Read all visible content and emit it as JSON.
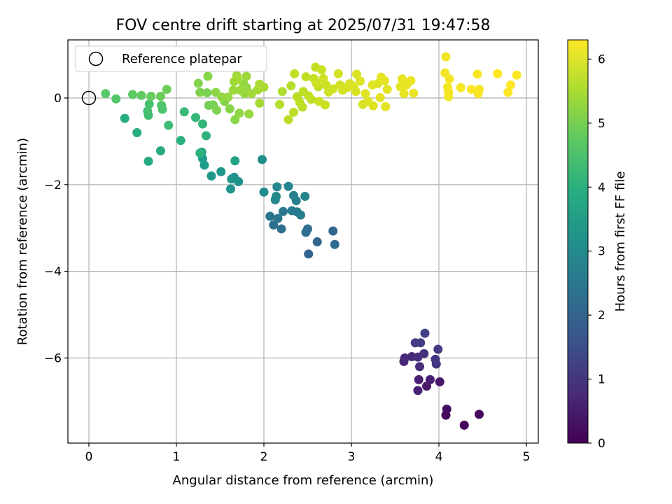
{
  "chart_data": {
    "type": "scatter",
    "title": "FOV centre drift starting at 2025/07/31 19:47:58",
    "xlabel": "Angular distance from reference (arcmin)",
    "ylabel": "Rotation from reference (arcmin)",
    "xlim": [
      -0.25,
      5.15
    ],
    "ylim": [
      -7.9,
      1.35
    ],
    "xticks": [
      0,
      1,
      2,
      3,
      4,
      5
    ],
    "xtick_labels": [
      "0",
      "1",
      "2",
      "3",
      "4",
      "5"
    ],
    "yticks": [
      0,
      -2,
      -4,
      -6
    ],
    "ytick_labels": [
      "0",
      "−2",
      "−4",
      "−6"
    ],
    "grid": true,
    "legend": {
      "placement": "top-left",
      "label": "Reference platepar"
    },
    "reference_point": {
      "x": 0,
      "y": 0
    },
    "colorbar": {
      "label": "Hours from first FF file",
      "range": [
        0,
        6.3
      ],
      "ticks": [
        0,
        1,
        2,
        3,
        4,
        5,
        6
      ],
      "tick_labels": [
        "0",
        "1",
        "2",
        "3",
        "4",
        "5",
        "6"
      ],
      "colormap": "viridis"
    },
    "points": [
      [
        4.29,
        -7.55,
        0.05
      ],
      [
        4.46,
        -7.3,
        0.1
      ],
      [
        4.08,
        -7.32,
        0.15
      ],
      [
        4.09,
        -7.18,
        0.2
      ],
      [
        4.01,
        -6.55,
        0.4
      ],
      [
        3.86,
        -6.65,
        0.45
      ],
      [
        3.9,
        -6.5,
        0.5
      ],
      [
        3.77,
        -6.5,
        0.55
      ],
      [
        3.76,
        -6.75,
        0.6
      ],
      [
        3.6,
        -6.08,
        0.65
      ],
      [
        3.61,
        -6.0,
        0.7
      ],
      [
        3.69,
        -5.97,
        0.75
      ],
      [
        3.78,
        -6.2,
        0.8
      ],
      [
        3.76,
        -5.98,
        0.85
      ],
      [
        3.83,
        -5.9,
        0.9
      ],
      [
        3.96,
        -6.03,
        0.95
      ],
      [
        3.97,
        -6.14,
        1.0
      ],
      [
        3.99,
        -5.8,
        1.05
      ],
      [
        3.73,
        -5.65,
        1.1
      ],
      [
        3.79,
        -5.65,
        1.15
      ],
      [
        3.84,
        -5.43,
        1.2
      ],
      [
        2.51,
        -3.6,
        2.0
      ],
      [
        2.61,
        -3.32,
        2.05
      ],
      [
        2.79,
        -3.07,
        2.1
      ],
      [
        2.81,
        -3.38,
        2.15
      ],
      [
        2.5,
        -3.02,
        2.2
      ],
      [
        2.48,
        -3.1,
        2.25
      ],
      [
        2.2,
        -3.02,
        2.3
      ],
      [
        2.11,
        -2.93,
        2.35
      ],
      [
        2.07,
        -2.73,
        2.4
      ],
      [
        2.16,
        -2.78,
        2.45
      ],
      [
        2.22,
        -2.62,
        2.5
      ],
      [
        2.32,
        -2.6,
        2.55
      ],
      [
        2.38,
        -2.63,
        2.6
      ],
      [
        2.42,
        -2.7,
        2.65
      ],
      [
        2.37,
        -2.37,
        2.7
      ],
      [
        2.34,
        -2.25,
        2.75
      ],
      [
        2.47,
        -2.27,
        2.8
      ],
      [
        2.28,
        -2.04,
        2.85
      ],
      [
        2.15,
        -2.05,
        2.9
      ],
      [
        2.13,
        -2.35,
        2.95
      ],
      [
        2.14,
        -2.27,
        3.0
      ],
      [
        2.0,
        -2.17,
        3.05
      ],
      [
        1.98,
        -1.42,
        3.1
      ],
      [
        1.71,
        -1.93,
        3.15
      ],
      [
        1.66,
        -1.83,
        3.2
      ],
      [
        1.62,
        -2.1,
        3.25
      ],
      [
        1.63,
        -1.87,
        3.3
      ],
      [
        1.51,
        -1.7,
        3.35
      ],
      [
        1.4,
        -1.8,
        3.4
      ],
      [
        1.32,
        -1.55,
        3.45
      ],
      [
        1.3,
        -1.4,
        3.5
      ],
      [
        1.29,
        -1.25,
        3.55
      ],
      [
        1.67,
        -1.45,
        3.6
      ],
      [
        0.68,
        -1.46,
        3.8
      ],
      [
        0.82,
        -1.22,
        3.85
      ],
      [
        0.55,
        -0.8,
        3.9
      ],
      [
        0.41,
        -0.47,
        3.95
      ],
      [
        1.05,
        -0.98,
        4.0
      ],
      [
        1.27,
        -1.27,
        4.05
      ],
      [
        1.34,
        -0.87,
        4.1
      ],
      [
        1.3,
        -0.6,
        4.15
      ],
      [
        1.22,
        -0.45,
        4.2
      ],
      [
        1.09,
        -0.32,
        4.25
      ],
      [
        0.91,
        -0.63,
        4.3
      ],
      [
        0.68,
        -0.4,
        4.35
      ],
      [
        0.67,
        -0.3,
        4.4
      ],
      [
        0.69,
        -0.14,
        4.45
      ],
      [
        0.84,
        -0.26,
        4.5
      ],
      [
        0.83,
        -0.17,
        4.55
      ],
      [
        0.31,
        -0.02,
        4.6
      ],
      [
        0.19,
        0.1,
        4.65
      ],
      [
        0.5,
        0.08,
        4.7
      ],
      [
        0.6,
        0.06,
        4.75
      ],
      [
        0.71,
        0.04,
        4.8
      ],
      [
        0.82,
        0.04,
        4.85
      ],
      [
        0.89,
        0.2,
        4.9
      ],
      [
        1.37,
        -0.17,
        4.95
      ],
      [
        1.42,
        -0.16,
        5.0
      ],
      [
        1.46,
        -0.28,
        5.05
      ],
      [
        1.55,
        -0.08,
        5.1
      ],
      [
        1.61,
        -0.25,
        5.15
      ],
      [
        1.67,
        -0.5,
        5.2
      ],
      [
        1.72,
        -0.35,
        5.25
      ],
      [
        1.83,
        -0.37,
        5.3
      ],
      [
        1.35,
        0.12,
        5.0
      ],
      [
        1.27,
        0.13,
        5.05
      ],
      [
        1.25,
        0.34,
        5.1
      ],
      [
        1.36,
        0.5,
        5.15
      ],
      [
        1.45,
        0.13,
        5.2
      ],
      [
        1.52,
        0.02,
        5.25
      ],
      [
        1.59,
        0.02,
        5.3
      ],
      [
        1.65,
        0.18,
        5.35
      ],
      [
        1.66,
        0.38,
        5.4
      ],
      [
        1.7,
        0.43,
        5.45
      ],
      [
        1.69,
        0.52,
        5.4
      ],
      [
        1.73,
        0.18,
        5.35
      ],
      [
        1.78,
        0.1,
        5.3
      ],
      [
        1.8,
        0.5,
        5.35
      ],
      [
        1.86,
        0.1,
        5.4
      ],
      [
        1.93,
        0.19,
        5.45
      ],
      [
        1.95,
        0.32,
        5.5
      ],
      [
        1.95,
        -0.12,
        5.45
      ],
      [
        2.0,
        0.25,
        5.5
      ],
      [
        1.77,
        0.33,
        5.25
      ],
      [
        1.8,
        0.24,
        5.3
      ],
      [
        2.18,
        -0.15,
        5.6
      ],
      [
        2.21,
        0.15,
        5.55
      ],
      [
        2.28,
        -0.5,
        5.65
      ],
      [
        2.31,
        0.28,
        5.6
      ],
      [
        2.34,
        -0.33,
        5.65
      ],
      [
        2.35,
        0.56,
        5.7
      ],
      [
        2.38,
        0.03,
        5.65
      ],
      [
        2.41,
        -0.1,
        5.7
      ],
      [
        2.44,
        -0.21,
        5.65
      ],
      [
        2.45,
        0.15,
        5.7
      ],
      [
        2.48,
        0.49,
        5.7
      ],
      [
        2.51,
        0.05,
        5.75
      ],
      [
        2.54,
        -0.03,
        5.7
      ],
      [
        2.57,
        0.45,
        5.75
      ],
      [
        2.59,
        0.71,
        5.75
      ],
      [
        2.6,
        0.34,
        5.8
      ],
      [
        2.62,
        0.26,
        5.75
      ],
      [
        2.63,
        -0.08,
        5.8
      ],
      [
        2.66,
        0.65,
        5.8
      ],
      [
        2.68,
        0.45,
        5.85
      ],
      [
        2.7,
        -0.16,
        5.8
      ],
      [
        2.71,
        0.3,
        5.85
      ],
      [
        2.74,
        0.14,
        5.85
      ],
      [
        2.79,
        0.21,
        5.85
      ],
      [
        2.85,
        0.56,
        5.9
      ],
      [
        2.87,
        0.3,
        5.9
      ],
      [
        2.9,
        0.18,
        5.9
      ],
      [
        2.95,
        0.24,
        5.9
      ],
      [
        2.98,
        0.33,
        5.95
      ],
      [
        3.0,
        0.3,
        5.95
      ],
      [
        3.03,
        0.24,
        5.95
      ],
      [
        3.06,
        0.55,
        5.95
      ],
      [
        3.1,
        0.39,
        6.0
      ],
      [
        3.13,
        -0.15,
        5.95
      ],
      [
        3.16,
        0.1,
        6.0
      ],
      [
        3.19,
        -0.08,
        6.0
      ],
      [
        3.24,
        0.3,
        6.0
      ],
      [
        3.25,
        -0.18,
        6.0
      ],
      [
        3.3,
        0.33,
        6.0
      ],
      [
        3.34,
        0.48,
        6.05
      ],
      [
        3.38,
        0.4,
        6.05
      ],
      [
        3.39,
        -0.2,
        6.05
      ],
      [
        3.41,
        0.2,
        6.05
      ],
      [
        3.56,
        0.26,
        6.05
      ],
      [
        3.58,
        0.44,
        6.1
      ],
      [
        3.6,
        0.1,
        6.1
      ],
      [
        3.63,
        0.3,
        6.1
      ],
      [
        3.68,
        0.4,
        6.1
      ],
      [
        3.71,
        0.11,
        6.1
      ],
      [
        3.33,
        0.01,
        6.05
      ],
      [
        3.05,
        0.15,
        5.95
      ],
      [
        4.08,
        0.95,
        6.15
      ],
      [
        4.07,
        0.58,
        6.2
      ],
      [
        4.12,
        0.44,
        6.2
      ],
      [
        4.1,
        0.25,
        6.2
      ],
      [
        4.11,
        0.14,
        6.2
      ],
      [
        4.11,
        0.03,
        6.2
      ],
      [
        4.25,
        0.24,
        6.25
      ],
      [
        4.37,
        0.2,
        6.25
      ],
      [
        4.44,
        0.55,
        6.25
      ],
      [
        4.46,
        0.2,
        6.25
      ],
      [
        4.45,
        0.1,
        6.25
      ],
      [
        4.67,
        0.56,
        6.3
      ],
      [
        4.79,
        0.13,
        6.3
      ],
      [
        4.82,
        0.3,
        6.3
      ],
      [
        4.89,
        0.53,
        6.3
      ]
    ]
  }
}
